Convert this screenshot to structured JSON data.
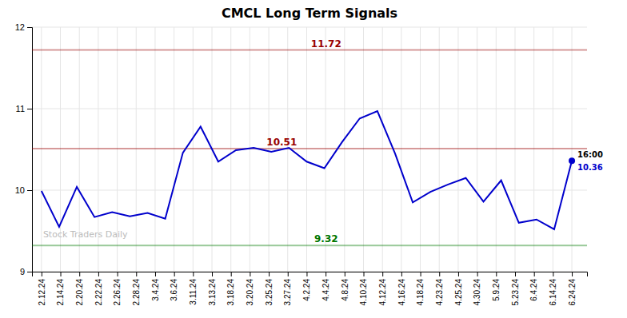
{
  "chart_data": {
    "type": "line",
    "title": "CMCL Long Term Signals",
    "x": [
      0,
      0.9333333333333333,
      1.8666666666666667,
      2.8,
      3.7333333333333334,
      4.666666666666667,
      5.6,
      6.533333333333333,
      7.466666666666667,
      8.4,
      9.333333333333334,
      10.266666666666667,
      11.2,
      12.133333333333333,
      13.066666666666666,
      14,
      14.933333333333334,
      15.866666666666667,
      16.8,
      17.733333333333334,
      18.666666666666668,
      19.6,
      20.533333333333335,
      21.466666666666665,
      22.4,
      23.333333333333332,
      24.266666666666666,
      25.2,
      26.133333333333333,
      27.066666666666666,
      28
    ],
    "values": [
      9.99,
      9.55,
      10.04,
      9.67,
      9.73,
      9.68,
      9.72,
      9.65,
      10.46,
      10.78,
      10.35,
      10.49,
      10.52,
      10.47,
      10.52,
      10.35,
      10.27,
      10.59,
      10.88,
      10.97,
      10.45,
      9.85,
      9.98,
      10.07,
      10.15,
      9.86,
      10.12,
      9.6,
      9.64,
      9.52,
      10.36
    ],
    "color": "#0000cc",
    "xlim": [
      -0.5,
      28.8
    ],
    "xticks": [
      {
        "value": 0,
        "label": "2.12.24"
      },
      {
        "value": 1,
        "label": "2.14.24"
      },
      {
        "value": 2,
        "label": "2.20.24"
      },
      {
        "value": 3,
        "label": "2.22.24"
      },
      {
        "value": 4,
        "label": "2.26.24"
      },
      {
        "value": 5,
        "label": "2.28.24"
      },
      {
        "value": 6,
        "label": "3.4.24"
      },
      {
        "value": 7,
        "label": "3.6.24"
      },
      {
        "value": 8,
        "label": "3.11.24"
      },
      {
        "value": 9,
        "label": "3.13.24"
      },
      {
        "value": 10,
        "label": "3.18.24"
      },
      {
        "value": 11,
        "label": "3.20.24"
      },
      {
        "value": 12,
        "label": "3.25.24"
      },
      {
        "value": 13,
        "label": "3.27.24"
      },
      {
        "value": 14,
        "label": "4.2.24"
      },
      {
        "value": 15,
        "label": "4.4.24"
      },
      {
        "value": 16,
        "label": "4.8.24"
      },
      {
        "value": 17,
        "label": "4.10.24"
      },
      {
        "value": 18,
        "label": "4.12.24"
      },
      {
        "value": 19,
        "label": "4.16.24"
      },
      {
        "value": 20,
        "label": "4.18.24"
      },
      {
        "value": 21,
        "label": "4.23.24"
      },
      {
        "value": 22,
        "label": "4.25.24"
      },
      {
        "value": 23,
        "label": "4.30.24"
      },
      {
        "value": 24,
        "label": "5.9.24"
      },
      {
        "value": 25,
        "label": "5.23.24"
      },
      {
        "value": 26,
        "label": "6.4.24"
      },
      {
        "value": 27,
        "label": "6.14.24"
      },
      {
        "value": 28,
        "label": "6.24.24"
      }
    ],
    "ylim": [
      9.0,
      12.0
    ],
    "yticks": [
      9,
      10,
      11,
      12
    ],
    "grid": true,
    "hlines": [
      {
        "value": 11.72,
        "color": "#990000"
      },
      {
        "value": 9.32,
        "color": "#007700"
      },
      {
        "value": 10.51,
        "color": "#990000"
      }
    ],
    "annotations": [
      "16:00",
      "Stock Traders Daily"
    ]
  }
}
